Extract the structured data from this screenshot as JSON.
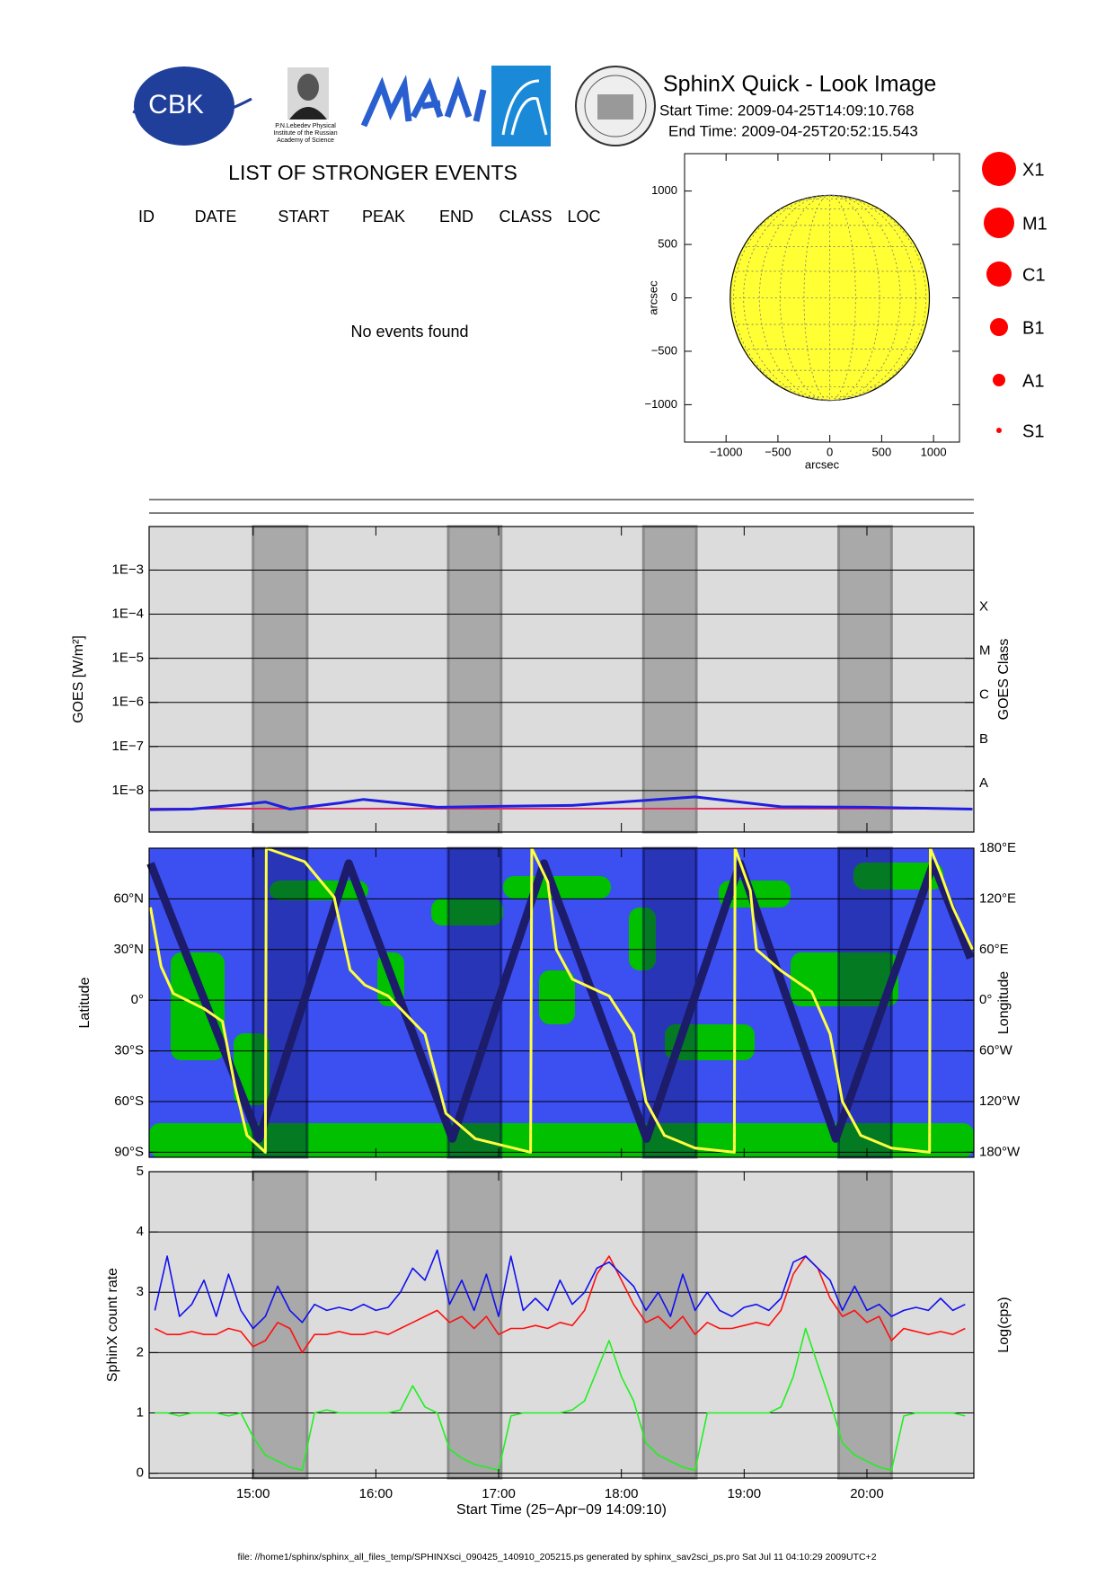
{
  "header": {
    "logo_text": "CBK",
    "institute": [
      "P.N.Lebedev Physical",
      "Institute of the Russian",
      "Academy of Science"
    ],
    "title": "SphinX Quick - Look Image",
    "start_time": "Start Time: 2009-04-25T14:09:10.768",
    "end_time": "End Time: 2009-04-25T20:52:15.543"
  },
  "events": {
    "title": "LIST OF STRONGER EVENTS",
    "columns": [
      "ID",
      "DATE",
      "START",
      "PEAK",
      "END",
      "CLASS",
      "LOC"
    ],
    "message": "No events found"
  },
  "class_legend": {
    "labels": [
      "X1",
      "M1",
      "C1",
      "B1",
      "A1",
      "S1"
    ],
    "color": "#ff0000"
  },
  "footer": "file: //home1/sphinx/sphinx_all_files_temp/SPHINXsci_090425_140910_205215.ps generated by sphinx_sav2sci_ps.pro Sat Jul 11 04:10:29 2009UTC+2",
  "shaded_intervals": [
    [
      15.0,
      15.44
    ],
    [
      16.59,
      17.02
    ],
    [
      18.18,
      18.61
    ],
    [
      19.77,
      20.2
    ]
  ],
  "chart_data": [
    {
      "type": "disk",
      "xlabel": "arcsec",
      "ylabel": "arcsec",
      "xlim": [
        -1400,
        1250
      ],
      "ylim": [
        -1350,
        1350
      ],
      "xticks": [
        {
          "value": -1000,
          "label": "−1000"
        },
        {
          "value": -500,
          "label": "−500"
        },
        0,
        500,
        1000
      ],
      "yticks": [
        {
          "value": -1000,
          "label": "−1000"
        },
        {
          "value": -500,
          "label": "−500"
        },
        0,
        500,
        1000
      ],
      "radius": 960,
      "color": "#ffff33",
      "grid": true
    },
    {
      "type": "line",
      "ylabel": "GOES [W/m²]",
      "y2label": "GOES Class",
      "log_scale": true,
      "grid": true,
      "ylim": [
        1.15e-09,
        0.0097
      ],
      "yticks": [
        {
          "value": 1e-08,
          "label": "1E−8"
        },
        {
          "value": 1e-07,
          "label": "1E−7"
        },
        {
          "value": 1e-06,
          "label": "1E−6"
        },
        {
          "value": 1e-05,
          "label": "1E−5"
        },
        {
          "value": 0.0001,
          "label": "1E−4"
        },
        {
          "value": 0.001,
          "label": "1E−3"
        }
      ],
      "class_ticks": [
        {
          "value": 1e-08,
          "label": "A"
        },
        {
          "value": 1e-07,
          "label": "B"
        },
        {
          "value": 1e-06,
          "label": "C"
        },
        {
          "value": 1e-05,
          "label": "M"
        },
        {
          "value": 0.0001,
          "label": "X"
        }
      ],
      "x": [
        14.16,
        14.5,
        14.9,
        15.1,
        15.3,
        15.7,
        15.9,
        16.5,
        17.0,
        17.6,
        18.6,
        19.3,
        20.0,
        20.86
      ],
      "series": [
        {
          "color": "#e03060",
          "values": [
            3.9e-09,
            3.9e-09,
            3.9e-09,
            3.9e-09,
            3.9e-09,
            3.9e-09,
            3.9e-09,
            3.9e-09,
            3.9e-09,
            3.9e-09,
            3.9e-09,
            3.9e-09,
            3.9e-09,
            3.9e-09
          ]
        },
        {
          "color": "#2020e0",
          "values": [
            3.7e-09,
            3.8e-09,
            4.8e-09,
            5.5e-09,
            3.8e-09,
            5.2e-09,
            6.3e-09,
            4.2e-09,
            4.4e-09,
            4.6e-09,
            7.2e-09,
            4.3e-09,
            4.2e-09,
            3.8e-09
          ]
        }
      ]
    },
    {
      "type": "ground_track",
      "ylabel": "Latitude",
      "y2label": "Longitude",
      "grid": true,
      "ylim": [
        -93,
        90
      ],
      "yticks": [
        {
          "value": -90,
          "label": "90°S"
        },
        {
          "value": -60,
          "label": "60°S"
        },
        {
          "value": -30,
          "label": "30°S"
        },
        {
          "value": 0,
          "label": "0°"
        },
        {
          "value": 30,
          "label": "30°N"
        },
        {
          "value": 60,
          "label": "60°N"
        }
      ],
      "y2lim": [
        -186,
        180
      ],
      "y2ticks": [
        {
          "value": -180,
          "label": "180°W"
        },
        {
          "value": -120,
          "label": "120°W"
        },
        {
          "value": -60,
          "label": "60°W"
        },
        {
          "value": 0,
          "label": "0°"
        },
        {
          "value": 60,
          "label": "60°E"
        },
        {
          "value": 120,
          "label": "120°E"
        },
        {
          "value": 180,
          "label": "180°E"
        }
      ],
      "ocean_color": "#3c4ff0",
      "land_color": "#00c000",
      "series": [
        {
          "color": "#1c1c6a",
          "x": [
            14.164,
            15.049,
            15.779,
            16.623,
            17.369,
            18.205,
            18.967,
            19.746,
            20.541,
            20.844
          ],
          "values": [
            81,
            -82,
            81,
            -82,
            81,
            -82,
            81,
            -82,
            81,
            25
          ]
        },
        {
          "color": "#ffff40",
          "axis": "y2",
          "x": [
            14.164,
            14.25,
            14.35,
            14.6,
            14.75,
            14.85,
            14.95,
            15.1,
            15.107,
            15.42,
            15.66,
            15.79,
            15.91,
            16.1,
            16.4,
            16.57,
            16.81,
            17.26,
            17.27,
            17.4,
            17.47,
            17.6,
            17.9,
            18.1,
            18.2,
            18.35,
            18.6,
            18.92,
            18.926,
            19.05,
            19.1,
            19.3,
            19.55,
            19.7,
            19.8,
            19.95,
            20.2,
            20.51,
            20.516,
            20.6,
            20.7,
            20.86
          ],
          "values": [
            110,
            40,
            8,
            -10,
            -25,
            -100,
            -160,
            -180,
            180,
            164,
            122,
            36,
            18,
            5,
            -40,
            -134,
            -164,
            -180,
            180,
            140,
            60,
            25,
            5,
            -40,
            -120,
            -160,
            -175,
            -180,
            180,
            130,
            60,
            35,
            10,
            -40,
            -120,
            -160,
            -175,
            -180,
            180,
            150,
            110,
            60
          ]
        }
      ]
    },
    {
      "type": "line",
      "xlabel": "Start Time (25−Apr−09 14:09:10)",
      "ylabel": "SphinX count rate",
      "y2label": "Log(cps)",
      "grid": true,
      "xlim": [
        14.153,
        20.871
      ],
      "xticks": [
        {
          "value": 15,
          "label": "15:00"
        },
        {
          "value": 16,
          "label": "16:00"
        },
        {
          "value": 17,
          "label": "17:00"
        },
        {
          "value": 18,
          "label": "18:00"
        },
        {
          "value": 19,
          "label": "19:00"
        },
        {
          "value": 20,
          "label": "20:00"
        }
      ],
      "ylim": [
        -0.08,
        5
      ],
      "yticks": [
        0,
        1,
        2,
        3,
        4,
        5
      ],
      "x": [
        14.2,
        14.3,
        14.4,
        14.5,
        14.6,
        14.7,
        14.8,
        14.9,
        15.0,
        15.1,
        15.2,
        15.3,
        15.4,
        15.5,
        15.6,
        15.7,
        15.8,
        15.9,
        16.0,
        16.1,
        16.2,
        16.3,
        16.4,
        16.5,
        16.6,
        16.7,
        16.8,
        16.9,
        17.0,
        17.1,
        17.2,
        17.3,
        17.4,
        17.5,
        17.6,
        17.7,
        17.8,
        17.9,
        18.0,
        18.1,
        18.2,
        18.3,
        18.4,
        18.5,
        18.6,
        18.7,
        18.8,
        18.9,
        19.0,
        19.1,
        19.2,
        19.3,
        19.4,
        19.5,
        19.6,
        19.7,
        19.8,
        19.9,
        20.0,
        20.1,
        20.2,
        20.3,
        20.4,
        20.5,
        20.6,
        20.7,
        20.8
      ],
      "series": [
        {
          "color": "#ff1010",
          "values": [
            2.4,
            2.3,
            2.3,
            2.35,
            2.3,
            2.3,
            2.4,
            2.35,
            2.1,
            2.2,
            2.5,
            2.4,
            2.0,
            2.3,
            2.3,
            2.35,
            2.3,
            2.3,
            2.35,
            2.3,
            2.4,
            2.5,
            2.6,
            2.7,
            2.5,
            2.6,
            2.4,
            2.6,
            2.3,
            2.4,
            2.4,
            2.45,
            2.4,
            2.5,
            2.45,
            2.7,
            3.3,
            3.6,
            3.2,
            2.8,
            2.5,
            2.6,
            2.4,
            2.6,
            2.3,
            2.5,
            2.4,
            2.4,
            2.45,
            2.5,
            2.45,
            2.7,
            3.3,
            3.6,
            3.4,
            2.9,
            2.6,
            2.7,
            2.5,
            2.6,
            2.2,
            2.4,
            2.35,
            2.3,
            2.35,
            2.3,
            2.4
          ]
        },
        {
          "color": "#1010f0",
          "values": [
            2.7,
            3.6,
            2.6,
            2.8,
            3.2,
            2.6,
            3.3,
            2.7,
            2.4,
            2.6,
            3.1,
            2.7,
            2.5,
            2.8,
            2.7,
            2.75,
            2.7,
            2.8,
            2.7,
            2.75,
            3.0,
            3.4,
            3.2,
            3.7,
            2.8,
            3.2,
            2.7,
            3.3,
            2.6,
            3.6,
            2.7,
            2.9,
            2.7,
            3.2,
            2.8,
            3.0,
            3.4,
            3.5,
            3.3,
            3.1,
            2.7,
            3.0,
            2.6,
            3.3,
            2.7,
            3.0,
            2.7,
            2.6,
            2.75,
            2.8,
            2.7,
            2.9,
            3.5,
            3.6,
            3.4,
            3.2,
            2.7,
            3.1,
            2.7,
            2.8,
            2.6,
            2.7,
            2.75,
            2.7,
            2.9,
            2.7,
            2.8
          ]
        },
        {
          "color": "#20f020",
          "values": [
            1.0,
            1.0,
            0.95,
            1.0,
            1.0,
            1.0,
            0.95,
            1.0,
            0.6,
            0.3,
            0.2,
            0.1,
            0.05,
            1.0,
            1.05,
            1.0,
            1.0,
            1.0,
            1.0,
            1.0,
            1.05,
            1.45,
            1.1,
            1.0,
            0.4,
            0.25,
            0.15,
            0.1,
            0.05,
            0.95,
            1.0,
            1.0,
            1.0,
            1.0,
            1.05,
            1.2,
            1.7,
            2.2,
            1.6,
            1.2,
            0.5,
            0.3,
            0.2,
            0.1,
            0.05,
            1.0,
            1.0,
            1.0,
            1.0,
            1.0,
            1.0,
            1.1,
            1.6,
            2.4,
            1.8,
            1.2,
            0.5,
            0.3,
            0.2,
            0.1,
            0.05,
            0.95,
            1.0,
            1.0,
            1.0,
            1.0,
            0.95
          ]
        }
      ]
    }
  ]
}
